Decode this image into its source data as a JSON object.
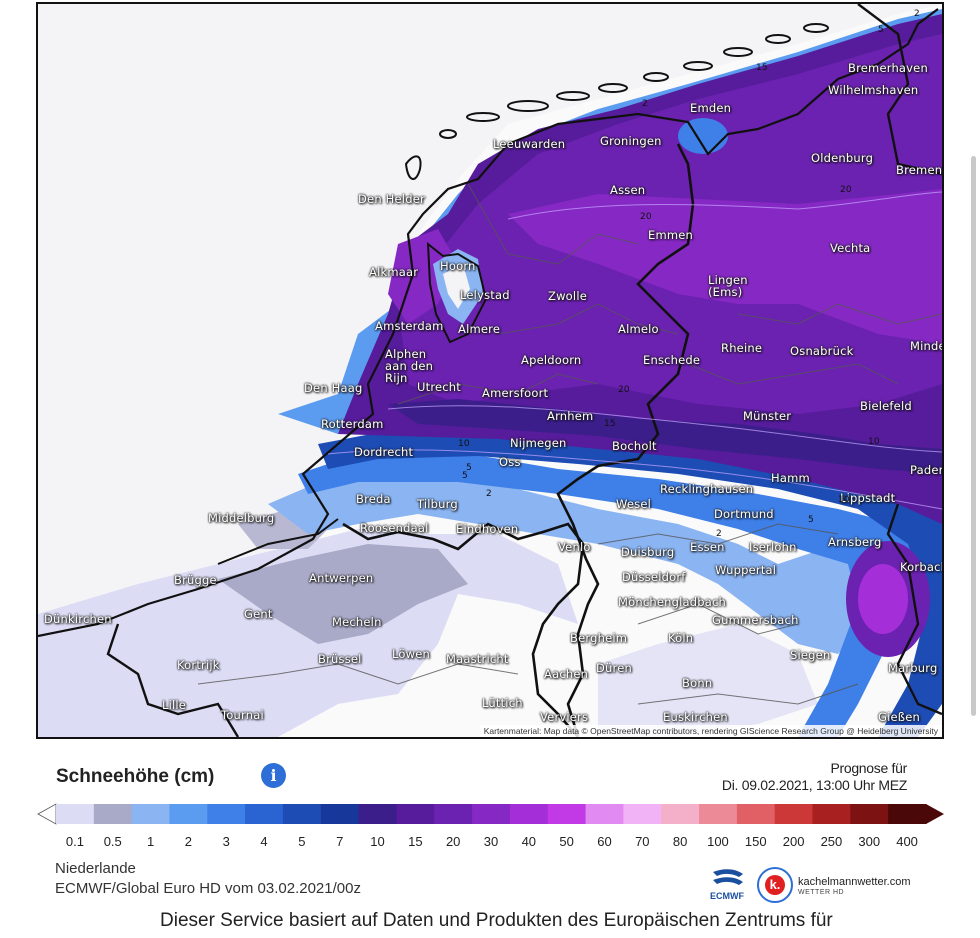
{
  "legend": {
    "title": "Schneehöhe (cm)",
    "info_icon": "info-icon",
    "ticks": [
      "0.1",
      "0.5",
      "1",
      "2",
      "3",
      "4",
      "5",
      "7",
      "10",
      "15",
      "20",
      "30",
      "40",
      "50",
      "60",
      "70",
      "80",
      "100",
      "150",
      "200",
      "250",
      "300",
      "400"
    ],
    "colors": [
      "#dcdcf4",
      "#a9a9c8",
      "#8ab4f2",
      "#5b9cf0",
      "#3f7fe8",
      "#2a63d2",
      "#1d4cb5",
      "#17389a",
      "#3b1e8a",
      "#561c9c",
      "#6b22b0",
      "#8628c4",
      "#a42ed8",
      "#c23ae6",
      "#e08af2",
      "#f2b2f6",
      "#f3b0c8",
      "#ec8a98",
      "#e06066",
      "#cc3838",
      "#a82020",
      "#7c1212",
      "#4a0808"
    ]
  },
  "forecast": {
    "line1": "Prognose für",
    "line2": "Di. 09.02.2021, 13:00 Uhr MEZ"
  },
  "region": "Niederlande",
  "model": "ECMWF/Global Euro HD vom 03.02.2021/00z",
  "attribution": "Kartenmaterial: Map data © OpenStreetMap contributors, rendering GIScience Research Group @ Heidelberg University",
  "logos": {
    "ecmwf": "ECMWF",
    "kachelmann_badge": "k.",
    "kachelmann_name": "kachelmannwetter.com",
    "kachelmann_sub": "WETTER HD"
  },
  "footer": "Dieser Service basiert auf Daten und Produkten des Europäischen Zentrums für",
  "cities": [
    {
      "name": "Bremerhaven"
    },
    {
      "name": "Wilhelmshaven"
    },
    {
      "name": "Emden"
    },
    {
      "name": "Oldenburg"
    },
    {
      "name": "Bremen"
    },
    {
      "name": "Leeuwarden"
    },
    {
      "name": "Groningen"
    },
    {
      "name": "Assen"
    },
    {
      "name": "Den Helder"
    },
    {
      "name": "Emmen"
    },
    {
      "name": "Vechta"
    },
    {
      "name": "Alkmaar"
    },
    {
      "name": "Hoorn"
    },
    {
      "name": "Lelystad"
    },
    {
      "name": "Zwolle"
    },
    {
      "name": "Lingen\n(Ems)"
    },
    {
      "name": "Amsterdam"
    },
    {
      "name": "Almere"
    },
    {
      "name": "Almelo"
    },
    {
      "name": "Alphen\naan den\nRijn"
    },
    {
      "name": "Apeldoorn"
    },
    {
      "name": "Enschede"
    },
    {
      "name": "Rheine"
    },
    {
      "name": "Osnabrück"
    },
    {
      "name": "Minden"
    },
    {
      "name": "Den Haag"
    },
    {
      "name": "Utrecht"
    },
    {
      "name": "Amersfoort"
    },
    {
      "name": "Bielefeld"
    },
    {
      "name": "Rotterdam"
    },
    {
      "name": "Arnhem"
    },
    {
      "name": "Münster"
    },
    {
      "name": "Dordrecht"
    },
    {
      "name": "Nijmegen"
    },
    {
      "name": "Bocholt"
    },
    {
      "name": "Oss"
    },
    {
      "name": "Hamm"
    },
    {
      "name": "Paderborn"
    },
    {
      "name": "Breda"
    },
    {
      "name": "Tilburg"
    },
    {
      "name": "Recklinghausen"
    },
    {
      "name": "Lippstadt"
    },
    {
      "name": "Middelburg"
    },
    {
      "name": "Wesel"
    },
    {
      "name": "Roosendaal"
    },
    {
      "name": "Eindhoven"
    },
    {
      "name": "Dortmund"
    },
    {
      "name": "Venlo"
    },
    {
      "name": "Duisburg"
    },
    {
      "name": "Essen"
    },
    {
      "name": "Iserlohn"
    },
    {
      "name": "Arnsberg"
    },
    {
      "name": "Antwerpen"
    },
    {
      "name": "Brügge"
    },
    {
      "name": "Düsseldorf"
    },
    {
      "name": "Wuppertal"
    },
    {
      "name": "Korbach"
    },
    {
      "name": "Mönchengladbach"
    },
    {
      "name": "Gent"
    },
    {
      "name": "Dünkirchen"
    },
    {
      "name": "Mecheln"
    },
    {
      "name": "Gummersbach"
    },
    {
      "name": "Bergheim"
    },
    {
      "name": "Köln"
    },
    {
      "name": "Kortrijk"
    },
    {
      "name": "Brüssel"
    },
    {
      "name": "Löwen"
    },
    {
      "name": "Maastricht"
    },
    {
      "name": "Siegen"
    },
    {
      "name": "Marburg"
    },
    {
      "name": "Düren"
    },
    {
      "name": "Aachen"
    },
    {
      "name": "Bonn"
    },
    {
      "name": "Lille"
    },
    {
      "name": "Tournai"
    },
    {
      "name": "Lüttich"
    },
    {
      "name": "Verviers"
    },
    {
      "name": "Euskirchen"
    },
    {
      "name": "Gießen"
    }
  ],
  "contour_labels": [
    "2",
    "15",
    "5",
    "2",
    "20",
    "20",
    "10",
    "15",
    "20",
    "5",
    "10",
    "2",
    "5",
    "2",
    "5",
    "10"
  ]
}
